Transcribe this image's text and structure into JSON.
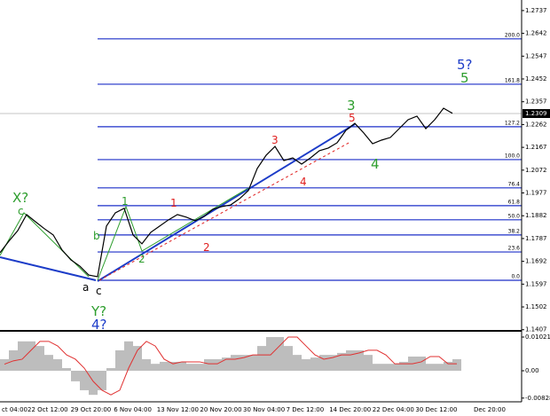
{
  "chart_data": [
    {
      "type": "line",
      "color": "#000000",
      "values": [
        1.1728,
        1.1776,
        1.182,
        1.1887,
        1.1857,
        1.1828,
        1.1802,
        1.1739,
        1.1698,
        1.1672,
        1.1635,
        1.1628,
        1.1839,
        1.1894,
        1.1913,
        1.1802,
        1.1765,
        1.1813,
        1.1839,
        1.1865,
        1.1887,
        1.1876,
        1.1861,
        1.1879,
        1.1909,
        1.192,
        1.1927,
        1.1953,
        1.1987,
        1.2079,
        1.2134,
        1.2171,
        1.2112,
        1.2123,
        1.2097,
        1.2123,
        1.2153,
        1.2164,
        1.2186,
        1.2238,
        1.2267,
        1.2227,
        1.2182,
        1.2197,
        1.2208,
        1.2245,
        1.2282,
        1.2297,
        1.2245,
        1.2282,
        1.233,
        1.2309
      ],
      "ylim": [
        1.1406,
        1.2781
      ],
      "yticks": [
        1.2737,
        1.2642,
        1.2547,
        1.2452,
        1.2357,
        1.2262,
        1.2167,
        1.2072,
        1.1977,
        1.1882,
        1.1787,
        1.1692,
        1.1597,
        1.1502,
        1.1407
      ],
      "x_labels": [
        "ct 04:00",
        "22 Oct 12:00",
        "29 Oct 20:00",
        "6 Nov 04:00",
        "13 Nov 12:00",
        "20 Nov 20:00",
        "30 Nov 04:00",
        "7 Dec 12:00",
        "14 Dec 20:00",
        "22 Dec 04:00",
        "30 Dec 12:00",
        "Dec 20:00"
      ],
      "fib_levels": [
        {
          "value": 1.2619,
          "label": "200.0"
        },
        {
          "value": 1.243,
          "label": "161.8"
        },
        {
          "value": 1.2253,
          "label": "127.2"
        },
        {
          "value": 1.2116,
          "label": "100.0"
        },
        {
          "value": 1.1998,
          "label": "76.4"
        },
        {
          "value": 1.1924,
          "label": "61.8"
        },
        {
          "value": 1.1865,
          "label": "50.0"
        },
        {
          "value": 1.1802,
          "label": "38.2"
        },
        {
          "value": 1.1731,
          "label": "23.6"
        },
        {
          "value": 1.1613,
          "label": "0.0"
        }
      ],
      "fib_color": "#1c2fc8",
      "annotations": [
        {
          "text": "X?",
          "color": "#2e9e2e"
        },
        {
          "text": "c",
          "color": "#2e9e2e"
        },
        {
          "text": "b",
          "color": "#2e9e2e"
        },
        {
          "text": "a",
          "color": "#000000"
        },
        {
          "text": "c",
          "color": "#000000"
        },
        {
          "text": "Y?",
          "color": "#2e9e2e"
        },
        {
          "text": "4?",
          "color": "#1c3cc8"
        },
        {
          "text": "1",
          "color": "#2e9e2e"
        },
        {
          "text": "2",
          "color": "#2e9e2e"
        },
        {
          "text": "1",
          "color": "#e02020"
        },
        {
          "text": "2",
          "color": "#e02020"
        },
        {
          "text": "3",
          "color": "#e02020"
        },
        {
          "text": "4",
          "color": "#e02020"
        },
        {
          "text": "3",
          "color": "#2e9e2e"
        },
        {
          "text": "5",
          "color": "#e02020"
        },
        {
          "text": "4",
          "color": "#2e9e2e"
        },
        {
          "text": "5?",
          "color": "#1c3cc8"
        },
        {
          "text": "5",
          "color": "#2e9e2e"
        }
      ]
    },
    {
      "type": "histogram",
      "series": [
        {
          "color": "#bdbdbd",
          "values": [
            0.0035,
            0.0062,
            0.0089,
            0.0089,
            0.0075,
            0.0048,
            0.0035,
            0.0008,
            -0.0032,
            -0.0059,
            -0.0073,
            -0.0059,
            0.0008,
            0.0062,
            0.0089,
            0.0075,
            0.0035,
            0.0021,
            0.0027,
            0.0027,
            0.0027,
            0.0021,
            0.0021,
            0.0035,
            0.0035,
            0.004,
            0.0048,
            0.0048,
            0.0048,
            0.0075,
            0.0102,
            0.0102,
            0.0075,
            0.0048,
            0.0035,
            0.004,
            0.0048,
            0.0048,
            0.0054,
            0.0062,
            0.0062,
            0.0048,
            0.0021,
            0.0021,
            0.0021,
            0.0027,
            0.0043,
            0.0043,
            0.0021,
            0.0021,
            0.0027,
            0.0035
          ]
        },
        {
          "color": "#e03030",
          "values": [
            0.002,
            0.003,
            0.0035,
            0.0062,
            0.0089,
            0.0089,
            0.0075,
            0.0048,
            0.0035,
            0.0008,
            -0.0032,
            -0.0059,
            -0.0073,
            -0.0059,
            0.0008,
            0.0062,
            0.0089,
            0.0075,
            0.0035,
            0.0021,
            0.0027,
            0.0027,
            0.0027,
            0.0021,
            0.0021,
            0.0035,
            0.0035,
            0.004,
            0.0048,
            0.0048,
            0.0048,
            0.0075,
            0.0102,
            0.0102,
            0.0075,
            0.0048,
            0.0035,
            0.004,
            0.0048,
            0.0048,
            0.0054,
            0.0062,
            0.0062,
            0.0048,
            0.0021,
            0.0021,
            0.0021,
            0.0027,
            0.0043,
            0.0043,
            0.0021,
            0.0021
          ]
        }
      ],
      "ylim": [
        -0.0086,
        0.01155
      ],
      "yticks": [
        0.01021,
        {
          "value": 0,
          "label": "0.00"
        },
        -0.00828
      ]
    }
  ]
}
